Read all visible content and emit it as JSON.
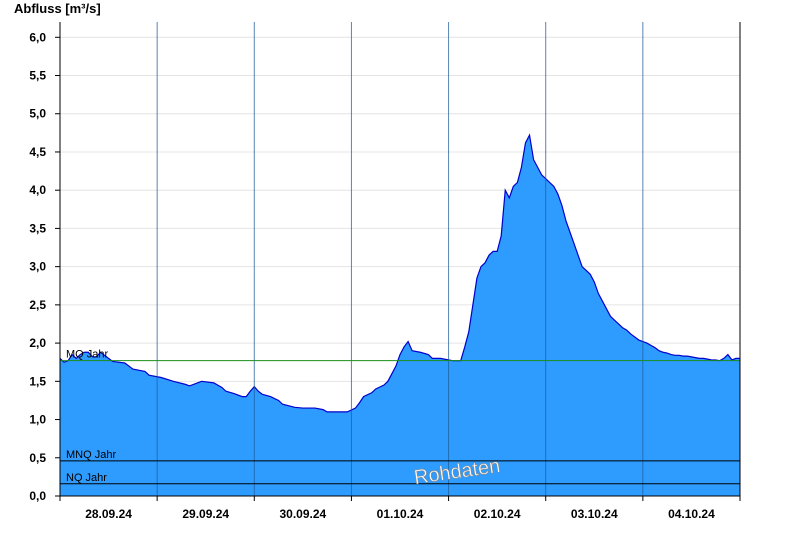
{
  "chart_data": {
    "type": "area",
    "ylabel": "Abfluss [m³/s]",
    "xlabel": "",
    "title": "",
    "watermark": "Rohdaten",
    "ylim": [
      0,
      6.2
    ],
    "yticks": [
      "6,0",
      "5,5",
      "5,0",
      "4,5",
      "4,0",
      "3,5",
      "3,0",
      "2,5",
      "2,0",
      "1,5",
      "1,0",
      "0,5",
      "0,0"
    ],
    "ytick_values": [
      6.0,
      5.5,
      5.0,
      4.5,
      4.0,
      3.5,
      3.0,
      2.5,
      2.0,
      1.5,
      1.0,
      0.5,
      0.0
    ],
    "x_range_hours": [
      0,
      168
    ],
    "xticks": [
      {
        "label": "28.09.24",
        "hour": 12
      },
      {
        "label": "29.09.24",
        "hour": 36
      },
      {
        "label": "30.09.24",
        "hour": 60
      },
      {
        "label": "01.10.24",
        "hour": 84
      },
      {
        "label": "02.10.24",
        "hour": 108
      },
      {
        "label": "03.10.24",
        "hour": 132
      },
      {
        "label": "04.10.24",
        "hour": 156
      }
    ],
    "day_boundaries_hours": [
      24,
      48,
      72,
      96,
      120,
      144
    ],
    "grid": true,
    "fill_color": "#2e9cff",
    "line_color": "#0000cc",
    "reference_lines": [
      {
        "label": "MQ Jahr",
        "value": 1.77,
        "color": "#1a8f1a"
      },
      {
        "label": "MNQ Jahr",
        "value": 0.46,
        "color": "#000000"
      },
      {
        "label": "NQ Jahr",
        "value": 0.16,
        "color": "#000000"
      }
    ],
    "series": [
      {
        "points": [
          [
            0,
            1.8
          ],
          [
            1,
            1.75
          ],
          [
            2,
            1.77
          ],
          [
            3,
            1.85
          ],
          [
            4,
            1.8
          ],
          [
            5,
            1.85
          ],
          [
            6,
            1.88
          ],
          [
            7,
            1.88
          ],
          [
            8,
            1.82
          ],
          [
            9,
            1.82
          ],
          [
            10,
            1.88
          ],
          [
            11,
            1.84
          ],
          [
            12,
            1.8
          ],
          [
            13,
            1.76
          ],
          [
            16,
            1.74
          ],
          [
            18,
            1.66
          ],
          [
            21,
            1.63
          ],
          [
            22,
            1.58
          ],
          [
            25,
            1.55
          ],
          [
            28,
            1.5
          ],
          [
            31,
            1.46
          ],
          [
            32,
            1.44
          ],
          [
            35,
            1.5
          ],
          [
            38,
            1.48
          ],
          [
            40,
            1.42
          ],
          [
            41,
            1.37
          ],
          [
            43,
            1.34
          ],
          [
            45,
            1.3
          ],
          [
            46,
            1.3
          ],
          [
            47,
            1.37
          ],
          [
            48,
            1.43
          ],
          [
            49,
            1.37
          ],
          [
            50,
            1.33
          ],
          [
            52,
            1.3
          ],
          [
            54,
            1.25
          ],
          [
            55,
            1.2
          ],
          [
            58,
            1.16
          ],
          [
            60,
            1.15
          ],
          [
            63,
            1.15
          ],
          [
            65,
            1.13
          ],
          [
            66,
            1.1
          ],
          [
            69,
            1.1
          ],
          [
            71,
            1.1
          ],
          [
            73,
            1.15
          ],
          [
            74,
            1.22
          ],
          [
            75,
            1.3
          ],
          [
            77,
            1.35
          ],
          [
            78,
            1.4
          ],
          [
            80,
            1.45
          ],
          [
            81,
            1.5
          ],
          [
            82,
            1.6
          ],
          [
            83,
            1.7
          ],
          [
            84,
            1.85
          ],
          [
            85,
            1.95
          ],
          [
            86,
            2.02
          ],
          [
            87,
            1.9
          ],
          [
            89,
            1.88
          ],
          [
            91,
            1.85
          ],
          [
            92,
            1.8
          ],
          [
            94,
            1.8
          ],
          [
            97,
            1.77
          ],
          [
            99,
            1.77
          ],
          [
            100,
            1.95
          ],
          [
            101,
            2.15
          ],
          [
            102,
            2.5
          ],
          [
            103,
            2.85
          ],
          [
            104,
            3.0
          ],
          [
            105,
            3.05
          ],
          [
            106,
            3.15
          ],
          [
            107,
            3.2
          ],
          [
            108,
            3.2
          ],
          [
            109,
            3.4
          ],
          [
            110,
            4.0
          ],
          [
            111,
            3.9
          ],
          [
            112,
            4.05
          ],
          [
            113,
            4.1
          ],
          [
            114,
            4.3
          ],
          [
            115,
            4.62
          ],
          [
            116,
            4.72
          ],
          [
            117,
            4.4
          ],
          [
            118,
            4.3
          ],
          [
            119,
            4.2
          ],
          [
            120,
            4.15
          ],
          [
            121,
            4.1
          ],
          [
            122,
            4.05
          ],
          [
            123,
            3.95
          ],
          [
            124,
            3.8
          ],
          [
            125,
            3.6
          ],
          [
            126,
            3.45
          ],
          [
            127,
            3.3
          ],
          [
            128,
            3.15
          ],
          [
            129,
            3.0
          ],
          [
            130,
            2.95
          ],
          [
            131,
            2.9
          ],
          [
            132,
            2.8
          ],
          [
            133,
            2.65
          ],
          [
            134,
            2.55
          ],
          [
            135,
            2.45
          ],
          [
            136,
            2.35
          ],
          [
            137,
            2.3
          ],
          [
            138,
            2.25
          ],
          [
            139,
            2.2
          ],
          [
            140,
            2.17
          ],
          [
            141,
            2.12
          ],
          [
            142,
            2.08
          ],
          [
            143,
            2.04
          ],
          [
            144,
            2.02
          ],
          [
            145,
            2.0
          ],
          [
            146,
            1.97
          ],
          [
            147,
            1.94
          ],
          [
            148,
            1.9
          ],
          [
            149,
            1.88
          ],
          [
            150,
            1.87
          ],
          [
            151,
            1.85
          ],
          [
            152,
            1.84
          ],
          [
            153,
            1.84
          ],
          [
            154,
            1.83
          ],
          [
            155,
            1.83
          ],
          [
            156,
            1.82
          ],
          [
            157,
            1.81
          ],
          [
            158,
            1.8
          ],
          [
            159,
            1.8
          ],
          [
            160,
            1.79
          ],
          [
            161,
            1.78
          ],
          [
            162,
            1.78
          ],
          [
            163,
            1.77
          ],
          [
            164,
            1.8
          ],
          [
            165,
            1.85
          ],
          [
            166,
            1.78
          ],
          [
            167,
            1.8
          ],
          [
            168,
            1.8
          ]
        ]
      }
    ]
  }
}
